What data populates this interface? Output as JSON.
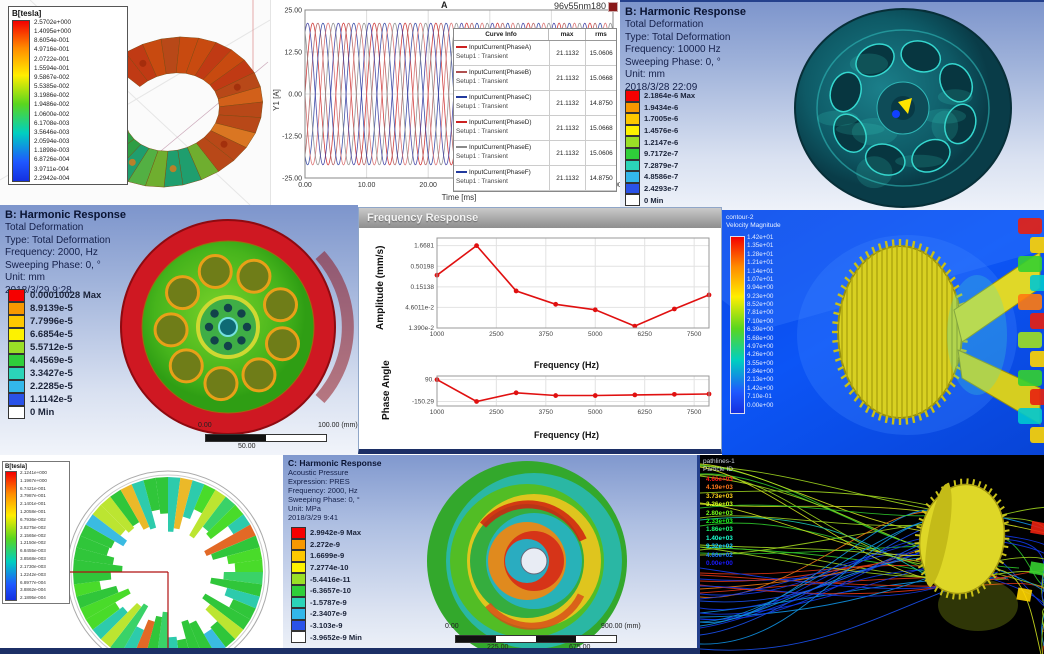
{
  "colors": {
    "ansys_bands": [
      "#f60000",
      "#f89800",
      "#fdc800",
      "#fdf200",
      "#9adf26",
      "#2fcf3a",
      "#2bd4b8",
      "#33b7ea",
      "#2a52e8"
    ],
    "accent_red": "#cc0000",
    "cfd_background": "#0a46e4",
    "gear_yellow": "#ded727"
  },
  "panels": {
    "torus": {
      "legend_title": "B[tesla]",
      "legend_values": [
        "2.5702e+000",
        "1.4095e+000",
        "8.6054e-001",
        "4.9716e-001",
        "2.0722e-001",
        "1.5594e-001",
        "9.5867e-002",
        "5.5385e-002",
        "3.1986e-002",
        "1.9486e-002",
        "1.0600e-002",
        "6.1708e-003",
        "3.5646e-003",
        "2.0594e-003",
        "1.1898e-003",
        "6.8726e-004",
        "3.9711e-004",
        "2.2942e-004"
      ]
    },
    "currents": {
      "corner_label": "A",
      "title": "96v55nm180",
      "ylabel": "Y1 [A]",
      "xlabel": "Time [ms]",
      "yticks": [
        "25.00",
        "12.50",
        "0.00",
        "-12.50",
        "-25.00"
      ],
      "xticks": [
        "0.00",
        "10.00",
        "20.00",
        "30.00",
        "40.00",
        "50.00"
      ],
      "table": {
        "headers": [
          "Curve Info",
          "max",
          "rms"
        ],
        "sub_label": "Setup1 : Transient",
        "rows": [
          {
            "name": "InputCurrent(PhaseA)",
            "max": "21.1132",
            "rms": "15.0606",
            "color": "#cc2222"
          },
          {
            "name": "InputCurrent(PhaseB)",
            "max": "21.1132",
            "rms": "15.0668",
            "color": "#b05050"
          },
          {
            "name": "InputCurrent(PhaseC)",
            "max": "21.1132",
            "rms": "14.8750",
            "color": "#223a9e"
          },
          {
            "name": "InputCurrent(PhaseD)",
            "max": "21.1132",
            "rms": "15.0668",
            "color": "#cc2222"
          },
          {
            "name": "InputCurrent(PhaseE)",
            "max": "21.1132",
            "rms": "15.0606",
            "color": "#8a8a8a"
          },
          {
            "name": "InputCurrent(PhaseF)",
            "max": "21.1132",
            "rms": "14.8750",
            "color": "#223a9e"
          }
        ]
      }
    },
    "harmonic_top": {
      "title": "B: Harmonic Response",
      "lines": [
        "Total Deformation",
        "Type: Total Deformation",
        "Frequency: 10000 Hz",
        "Sweeping Phase: 0, °",
        "Unit: mm",
        "2018/3/28 22:09"
      ],
      "legend_values": [
        "2.1864e-6 Max",
        "1.9434e-6",
        "1.7005e-6",
        "1.4576e-6",
        "1.2147e-6",
        "9.7172e-7",
        "7.2879e-7",
        "4.8586e-7",
        "2.4293e-7",
        "0 Min"
      ]
    },
    "harmonic_mid": {
      "title": "B: Harmonic Response",
      "lines": [
        "Total Deformation",
        "Type: Total Deformation",
        "Frequency: 2000, Hz",
        "Sweeping Phase: 0, °",
        "Unit: mm",
        "2018/3/29 9:28"
      ],
      "legend_values": [
        "0.00010028 Max",
        "8.9139e-5",
        "7.7996e-5",
        "6.6854e-5",
        "5.5712e-5",
        "4.4569e-5",
        "3.3427e-5",
        "2.2285e-5",
        "1.1142e-5",
        "0 Min"
      ],
      "scale": {
        "left": "0.00",
        "right": "100.00 (mm)",
        "mid": "50.00"
      }
    },
    "freq_response": {
      "window_title": "Frequency Response",
      "amp_ylabel": "Amplitude (mm/s)",
      "phase_ylabel": "Phase Angle",
      "xlabel": "Frequency (Hz)",
      "amp_yticks": [
        "1.6681",
        "0.50198",
        "0.15138",
        "4.6011e-2",
        "1.390e-2"
      ],
      "phase_yticks": [
        "90.",
        "-150.29"
      ],
      "xticks": [
        "1000",
        "2500",
        "3750",
        "5000",
        "6250",
        "7500"
      ]
    },
    "cfd_velocity": {
      "legend_title_lines": [
        "contour-2",
        "Velocity Magnitude"
      ],
      "legend_values": [
        "1.42e+01",
        "1.35e+01",
        "1.28e+01",
        "1.21e+01",
        "1.14e+01",
        "1.07e+01",
        "9.94e+00",
        "9.23e+00",
        "8.52e+00",
        "7.81e+00",
        "7.10e+00",
        "6.39e+00",
        "5.68e+00",
        "4.97e+00",
        "4.26e+00",
        "3.55e+00",
        "2.84e+00",
        "2.13e+00",
        "1.42e+00",
        "7.10e-01",
        "0.00e+00"
      ]
    },
    "bfield_rotor": {
      "legend_title": "B[tesla]",
      "legend_values": [
        "2.1241e+000",
        "1.1967e+000",
        "6.7421e-001",
        "3.7987e-001",
        "2.1401e-001",
        "1.2058e-001",
        "6.7936e-002",
        "3.8275e-002",
        "2.1565e-002",
        "1.2150e-002",
        "6.8455e-003",
        "3.8568e-003",
        "2.1730e-003",
        "1.2242e-003",
        "6.8977e-004",
        "3.8862e-004",
        "2.1895e-004"
      ]
    },
    "acoustic": {
      "title": "C: Harmonic Response",
      "lines": [
        "Acoustic Pressure",
        "Expression: PRES",
        "Frequency: 2000, Hz",
        "Sweeping Phase: 0, °",
        "Unit: MPa",
        "2018/3/29 9:41"
      ],
      "legend_values": [
        "2.9942e-9 Max",
        "2.272e-9",
        "1.6699e-9",
        "7.2774e-10",
        "-5.4416e-11",
        "-6.3657e-10",
        "-1.5787e-9",
        "-2.3407e-9",
        "-3.103e-9",
        "-3.9652e-9 Min"
      ],
      "scale": {
        "left": "0.00",
        "right": "900.00 (mm)",
        "q1": "225.00",
        "q3": "675.00"
      }
    },
    "pathlines": {
      "legend_title_lines": [
        "pathlines-1",
        "Particle ID"
      ],
      "legend_values": [
        "4.66e+03",
        "4.19e+03",
        "3.73e+03",
        "3.26e+03",
        "2.80e+03",
        "2.33e+03",
        "1.86e+03",
        "1.40e+03",
        "9.32e+02",
        "4.66e+02",
        "0.00e+00"
      ]
    }
  },
  "chart_data": [
    {
      "id": "phase_currents",
      "type": "line",
      "title": "96v55nm180",
      "xlabel": "Time [ms]",
      "ylabel": "Y1 [A]",
      "xlim": [
        0,
        50
      ],
      "ylim": [
        -25,
        25
      ],
      "waveform": "sine",
      "amplitude": 21.1132,
      "period_ms": 5,
      "series": [
        {
          "name": "InputCurrent(PhaseA)",
          "phase_deg": 0,
          "color": "#cc2a2a"
        },
        {
          "name": "InputCurrent(PhaseB)",
          "phase_deg": -60,
          "color": "#b05a5a"
        },
        {
          "name": "InputCurrent(PhaseC)",
          "phase_deg": -120,
          "color": "#2b3f9e"
        },
        {
          "name": "InputCurrent(PhaseD)",
          "phase_deg": -180,
          "color": "#d86a6a"
        },
        {
          "name": "InputCurrent(PhaseE)",
          "phase_deg": -240,
          "color": "#8a8a8a"
        },
        {
          "name": "InputCurrent(PhaseF)",
          "phase_deg": -300,
          "color": "#3a3aa0"
        }
      ]
    },
    {
      "id": "freq_amplitude",
      "type": "line",
      "yscale": "log",
      "xlabel": "Frequency (Hz)",
      "ylabel": "Amplitude (mm/s)",
      "x": [
        1000,
        2000,
        3000,
        4000,
        5000,
        6000,
        7000,
        7875
      ],
      "y": [
        0.3,
        1.6681,
        0.12,
        0.055,
        0.04,
        0.0155,
        0.042,
        0.095
      ],
      "ytick_values": [
        1.6681,
        0.50198,
        0.15138,
        0.046011,
        0.0139
      ],
      "xtick_values": [
        1000,
        2500,
        3750,
        5000,
        6250,
        7500
      ],
      "xlim": [
        1000,
        7875
      ],
      "ylim": [
        0.0139,
        2.6
      ],
      "color": "#e01010",
      "marker": "circle",
      "legend_position": "none",
      "grid": true
    },
    {
      "id": "freq_phase",
      "type": "line",
      "xlabel": "Frequency (Hz)",
      "ylabel": "Phase Angle",
      "x": [
        1000,
        2000,
        3000,
        4000,
        5000,
        6000,
        7000,
        7875
      ],
      "y": [
        90,
        -150.29,
        -55,
        -85,
        -85,
        -78,
        -72,
        -68
      ],
      "ytick_values": [
        90,
        -150.29
      ],
      "xtick_values": [
        1000,
        2500,
        3750,
        5000,
        6250,
        7500
      ],
      "xlim": [
        1000,
        7875
      ],
      "ylim": [
        -200,
        130
      ],
      "color": "#e01010",
      "marker": "circle",
      "grid": true
    }
  ]
}
